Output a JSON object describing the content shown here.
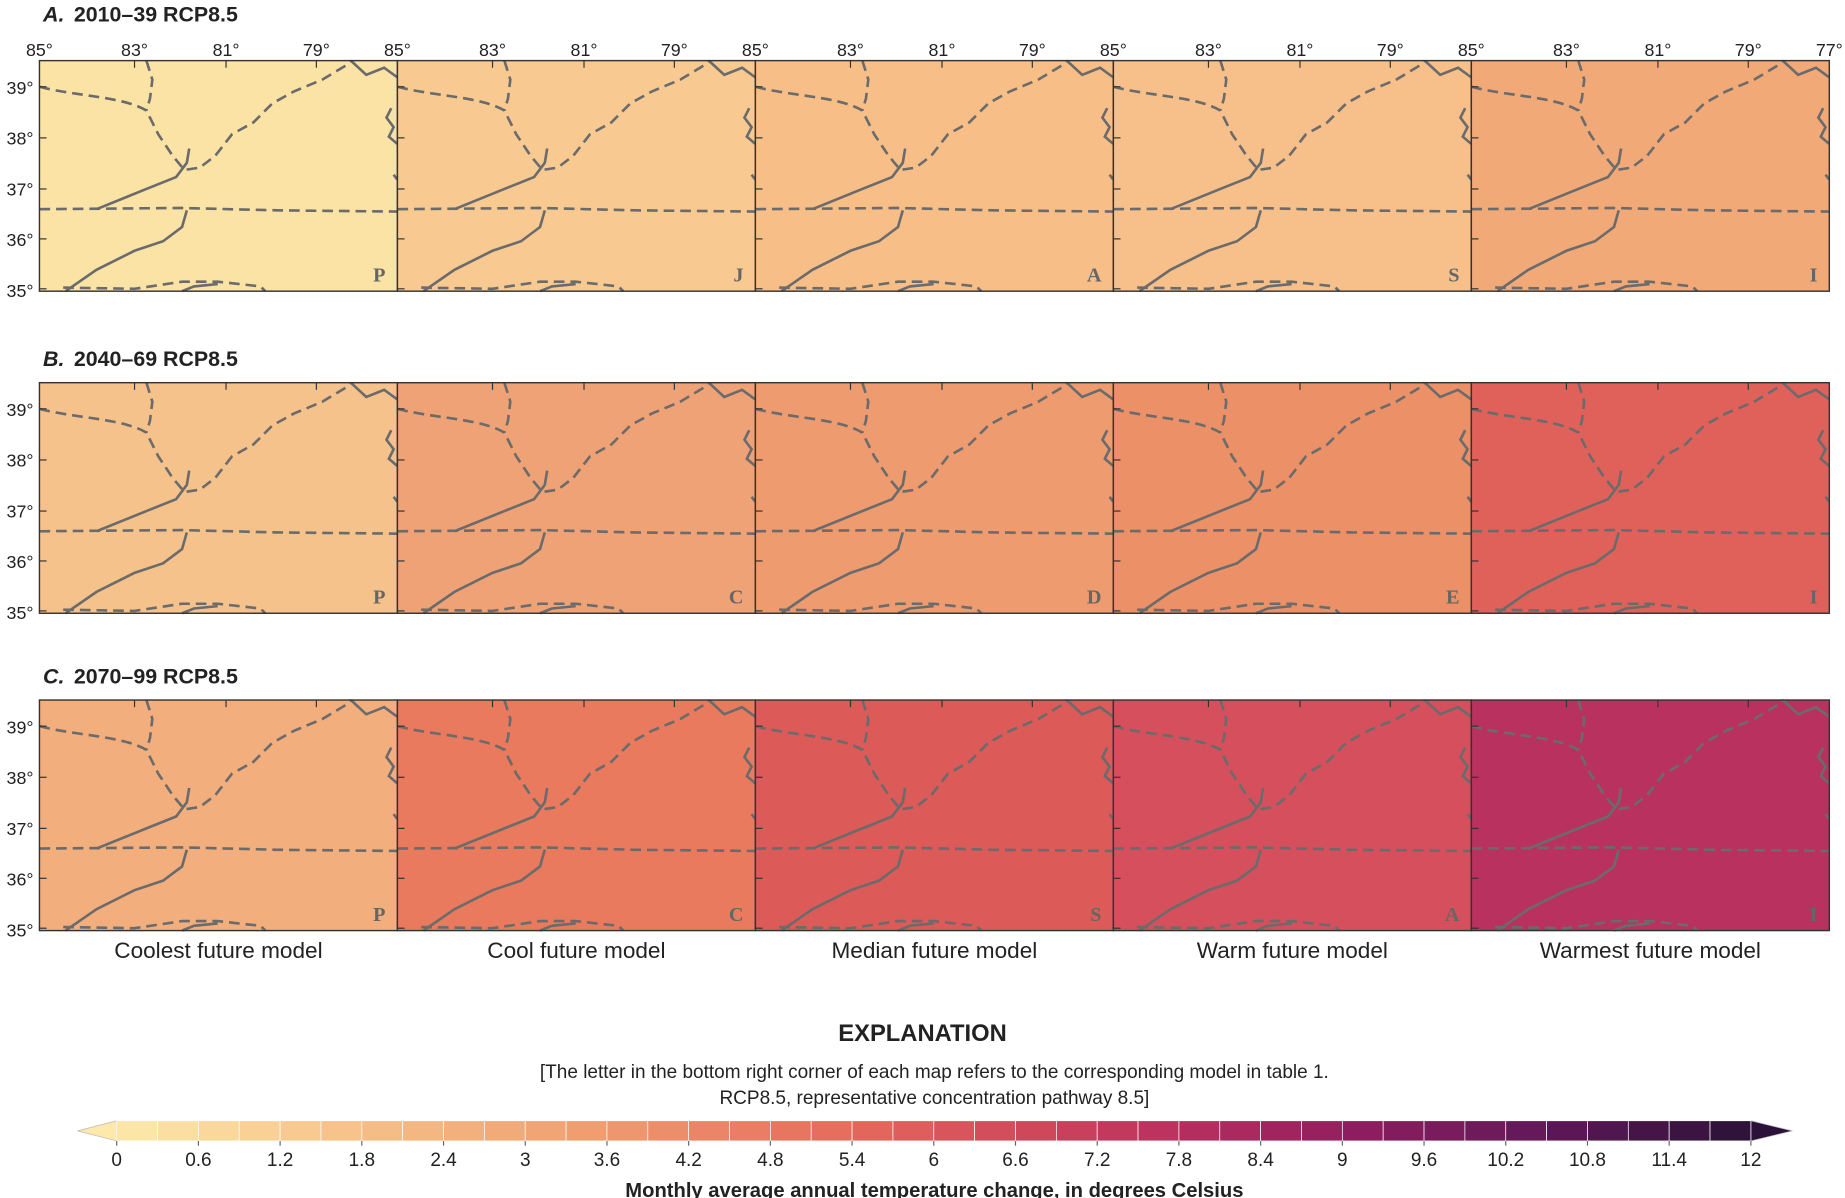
{
  "panels": [
    {
      "label": "A.",
      "title": "2010–39 RCP8.5",
      "maps": [
        {
          "model": "P",
          "color": "#fbe3a6"
        },
        {
          "model": "J",
          "color": "#f8ca92"
        },
        {
          "model": "A",
          "color": "#f7bf87"
        },
        {
          "model": "S",
          "color": "#f7c08a"
        },
        {
          "model": "I",
          "color": "#f2a978"
        }
      ]
    },
    {
      "label": "B.",
      "title": "2040–69 RCP8.5",
      "maps": [
        {
          "model": "P",
          "color": "#f6c28b"
        },
        {
          "model": "C",
          "color": "#efa276"
        },
        {
          "model": "D",
          "color": "#ee9b70"
        },
        {
          "model": "E",
          "color": "#ec9067"
        },
        {
          "model": "I",
          "color": "#e0615a"
        }
      ]
    },
    {
      "label": "C.",
      "title": "2070–99 RCP8.5",
      "maps": [
        {
          "model": "P",
          "color": "#f2ae7c"
        },
        {
          "model": "C",
          "color": "#e97a5d"
        },
        {
          "model": "S",
          "color": "#dc5a58"
        },
        {
          "model": "A",
          "color": "#d5505c"
        },
        {
          "model": "I",
          "color": "#b9315f"
        }
      ]
    }
  ],
  "longitude_labels": [
    "85°",
    "83°",
    "81°",
    "79°",
    "77°"
  ],
  "latitude_labels": [
    "39°",
    "38°",
    "37°",
    "36°",
    "35°"
  ],
  "column_labels": [
    "Coolest future model",
    "Cool future model",
    "Median future model",
    "Warm future model",
    "Warmest future model"
  ],
  "explanation": {
    "title": "EXPLANATION",
    "note": [
      "[The letter in the bottom right corner of each map refers to the corresponding model in table 1.",
      "RCP8.5, representative concentration pathway 8.5]"
    ],
    "colorbar": {
      "lim": [
        0,
        12
      ],
      "ticks": [
        0,
        0.6,
        1.2,
        1.8,
        2.4,
        3,
        3.6,
        4.2,
        4.8,
        5.4,
        6,
        6.6,
        7.2,
        7.8,
        8.4,
        9,
        9.6,
        10.2,
        10.8,
        11.4,
        12
      ],
      "label": "Monthly average annual temperature change, in degrees Celsius"
    }
  }
}
